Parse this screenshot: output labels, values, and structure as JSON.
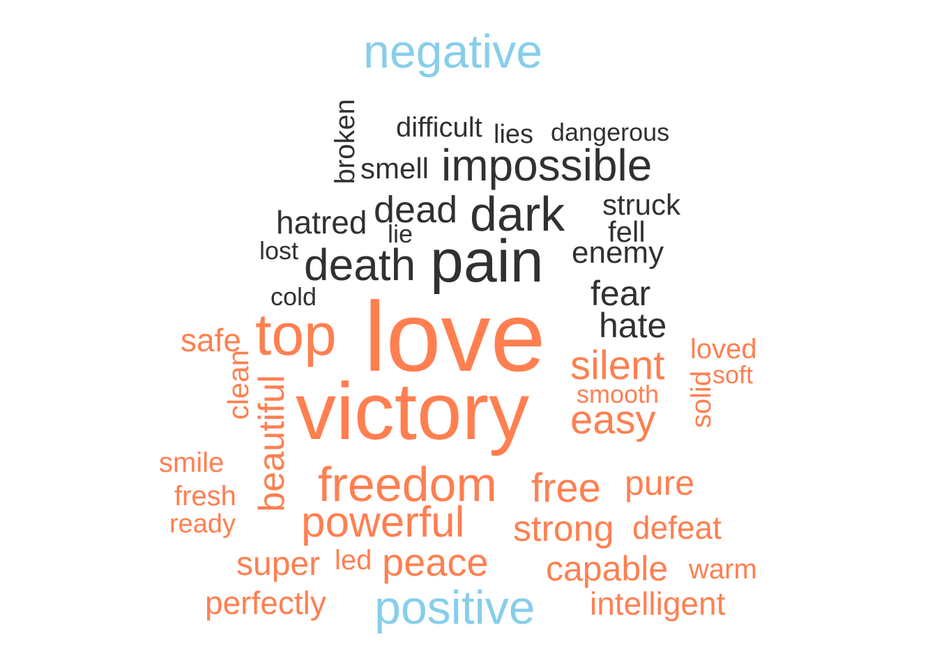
{
  "colors": {
    "group_label": "#87CEEB",
    "negative": "#2F3133",
    "positive": "#FF7F50"
  },
  "labels": {
    "negative": "negative",
    "positive": "positive"
  },
  "negative_words": [
    "difficult",
    "lies",
    "dangerous",
    "broken",
    "smell",
    "impossible",
    "hatred",
    "dead",
    "dark",
    "struck",
    "lie",
    "fell",
    "lost",
    "pain",
    "enemy",
    "death",
    "cold",
    "fear",
    "hate"
  ],
  "positive_words": [
    "top",
    "love",
    "safe",
    "loved",
    "silent",
    "soft",
    "clean",
    "smooth",
    "solid",
    "victory",
    "beautiful",
    "easy",
    "smile",
    "freedom",
    "free",
    "pure",
    "fresh",
    "ready",
    "powerful",
    "strong",
    "defeat",
    "super",
    "led",
    "peace",
    "capable",
    "warm",
    "perfectly",
    "intelligent"
  ]
}
